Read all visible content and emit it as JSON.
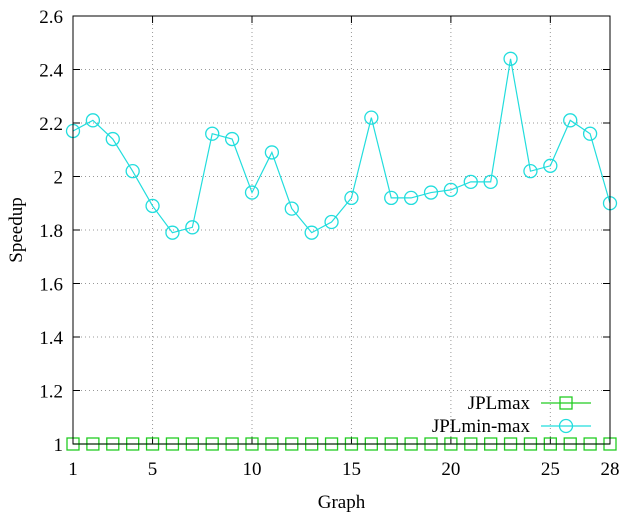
{
  "chart_data": {
    "type": "line",
    "xlabel": "Graph",
    "ylabel": "Speedup",
    "xlim": [
      1,
      28
    ],
    "ylim": [
      1,
      2.6
    ],
    "x_ticks": [
      1,
      5,
      10,
      15,
      20,
      25,
      28
    ],
    "y_ticks": [
      1,
      1.2,
      1.4,
      1.6,
      1.8,
      2,
      2.2,
      2.4,
      2.6
    ],
    "grid": true,
    "legend_position": "bottom-right",
    "x": [
      1,
      2,
      3,
      4,
      5,
      6,
      7,
      8,
      9,
      10,
      11,
      12,
      13,
      14,
      15,
      16,
      17,
      18,
      19,
      20,
      21,
      22,
      23,
      24,
      25,
      26,
      27,
      28
    ],
    "series": [
      {
        "name": "JPLmax",
        "color": "#22cc22",
        "marker": "square",
        "values": [
          1,
          1,
          1,
          1,
          1,
          1,
          1,
          1,
          1,
          1,
          1,
          1,
          1,
          1,
          1,
          1,
          1,
          1,
          1,
          1,
          1,
          1,
          1,
          1,
          1,
          1,
          1,
          1
        ]
      },
      {
        "name": "JPLmin-max",
        "color": "#22dddd",
        "marker": "circle",
        "values": [
          2.17,
          2.21,
          2.14,
          2.02,
          1.89,
          1.79,
          1.81,
          2.16,
          2.14,
          1.94,
          2.09,
          1.88,
          1.79,
          1.83,
          1.92,
          2.22,
          1.92,
          1.92,
          1.94,
          1.95,
          1.98,
          1.98,
          2.44,
          2.02,
          2.04,
          2.21,
          2.16,
          1.9
        ]
      }
    ]
  }
}
